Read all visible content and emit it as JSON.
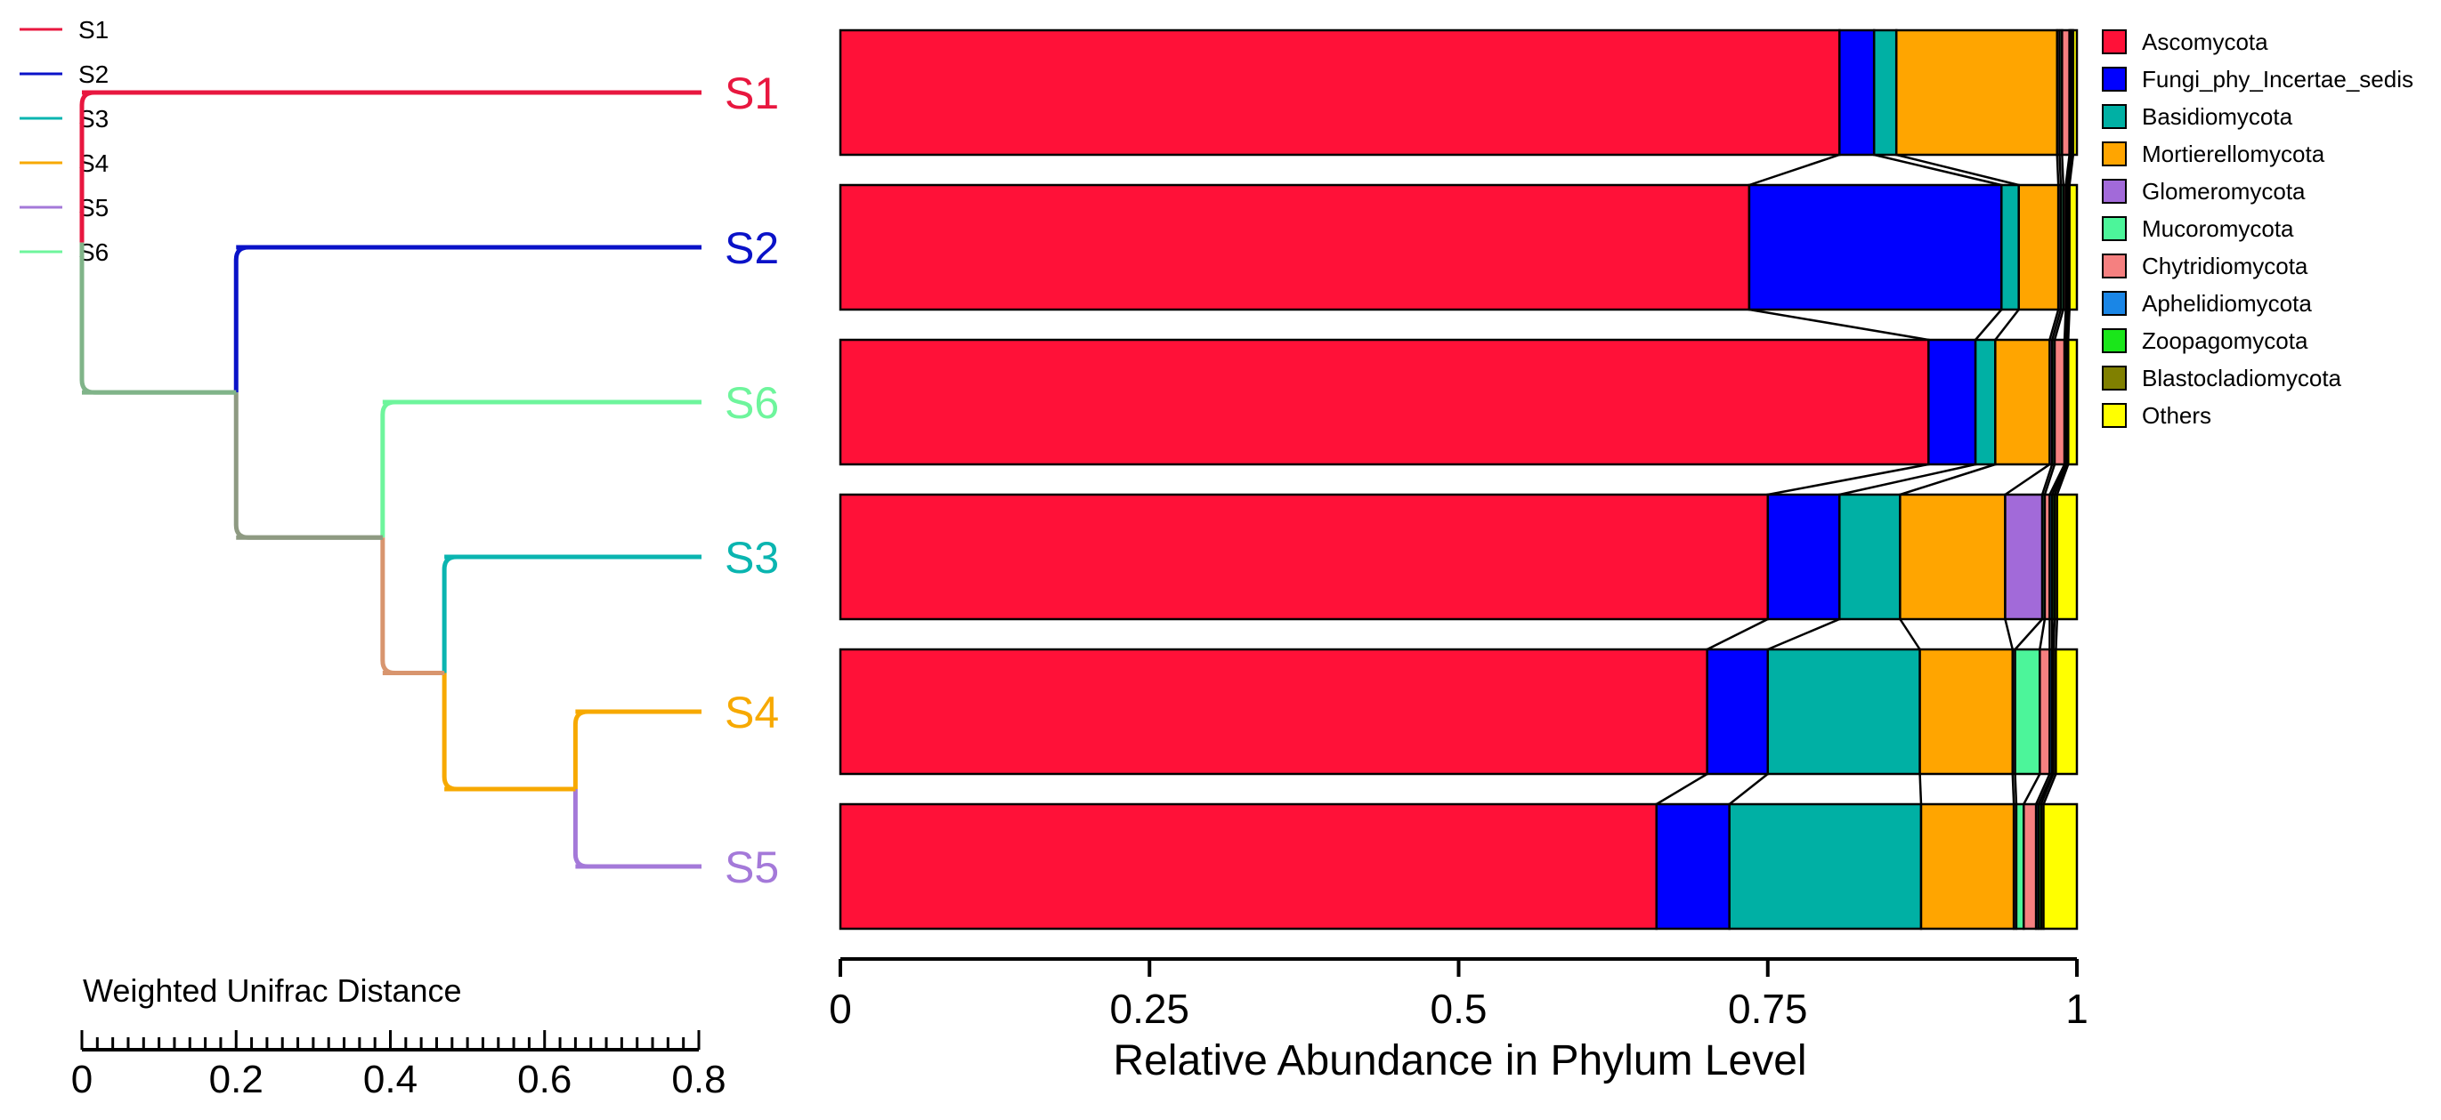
{
  "chart_data": [
    {
      "type": "dendrogram",
      "scale_title": "Weighted Unifrac Distance",
      "scale_ticks": [
        "0",
        "0.2",
        "0.4",
        "0.6",
        "0.8"
      ],
      "xlim": [
        0,
        0.8
      ],
      "leaf_order": [
        "S1",
        "S2",
        "S6",
        "S3",
        "S4",
        "S5"
      ],
      "leaf_colors": {
        "S1": "#e8173f",
        "S2": "#0a12c8",
        "S6": "#6ef59c",
        "S3": "#0ab5b0",
        "S4": "#f7a900",
        "S5": "#a479d9"
      },
      "legend": [
        "S1",
        "S2",
        "S3",
        "S4",
        "S5",
        "S6"
      ],
      "merges": [
        {
          "id": "A",
          "children": [
            "S4",
            "S5"
          ],
          "height": 0.64,
          "color": "#f7a900"
        },
        {
          "id": "B",
          "children": [
            "S3",
            "A"
          ],
          "height": 0.47,
          "color": "#d8956e"
        },
        {
          "id": "C",
          "children": [
            "S6",
            "B"
          ],
          "height": 0.39,
          "color": "#8e9a82"
        },
        {
          "id": "D",
          "children": [
            "S2",
            "C"
          ],
          "height": 0.2,
          "color": "#80b489"
        },
        {
          "id": "E",
          "children": [
            "S1",
            "D"
          ],
          "height": 0.0,
          "color": "#6e8fa3"
        }
      ]
    },
    {
      "type": "bar",
      "orientation": "horizontal",
      "stacked": true,
      "xlabel": "Relative Abundance in Phylum Level",
      "xlim": [
        0,
        1
      ],
      "xticks": [
        "0",
        "0.25",
        "0.5",
        "0.75",
        "1"
      ],
      "categories": [
        "S1",
        "S2",
        "S6",
        "S3",
        "S4",
        "S5"
      ],
      "legend_position": "right",
      "series": [
        {
          "name": "Ascomycota",
          "color": "#ff1138",
          "values": [
            0.808,
            0.735,
            0.88,
            0.75,
            0.701,
            0.66
          ]
        },
        {
          "name": "Fungi_phy_Incertae_sedis",
          "color": "#0000ff",
          "values": [
            0.028,
            0.204,
            0.038,
            0.058,
            0.049,
            0.059
          ]
        },
        {
          "name": "Basidiomycota",
          "color": "#00b0a4",
          "values": [
            0.018,
            0.014,
            0.016,
            0.049,
            0.123,
            0.155
          ]
        },
        {
          "name": "Mortierellomycota",
          "color": "#ffa500",
          "values": [
            0.13,
            0.032,
            0.044,
            0.085,
            0.075,
            0.075
          ]
        },
        {
          "name": "Glomeromycota",
          "color": "#a26ad9",
          "values": [
            0.002,
            0.002,
            0.002,
            0.03,
            0.002,
            0.002
          ]
        },
        {
          "name": "Mucoromycota",
          "color": "#4cf59a",
          "values": [
            0.002,
            0.002,
            0.002,
            0.002,
            0.02,
            0.006
          ]
        },
        {
          "name": "Chytridiomycota",
          "color": "#f58080",
          "values": [
            0.006,
            0.002,
            0.008,
            0.004,
            0.008,
            0.01
          ]
        },
        {
          "name": "Aphelidiomycota",
          "color": "#1a86e6",
          "values": [
            0.001,
            0.001,
            0.001,
            0.002,
            0.002,
            0.002
          ]
        },
        {
          "name": "Zoopagomycota",
          "color": "#1ae61a",
          "values": [
            0.001,
            0.001,
            0.001,
            0.002,
            0.001,
            0.002
          ]
        },
        {
          "name": "Blastocladiomycota",
          "color": "#808000",
          "values": [
            0.001,
            0.001,
            0.001,
            0.002,
            0.002,
            0.002
          ]
        },
        {
          "name": "Others",
          "color": "#ffff00",
          "values": [
            0.003,
            0.006,
            0.007,
            0.016,
            0.017,
            0.027
          ]
        }
      ]
    }
  ]
}
